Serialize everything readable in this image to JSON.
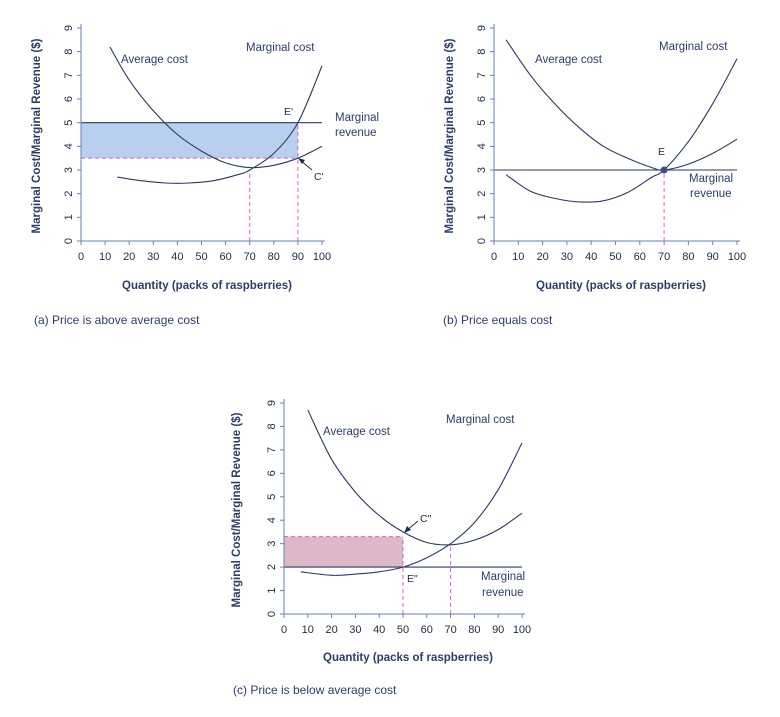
{
  "chart_data": [
    {
      "type": "line",
      "panel": "a",
      "caption": "(a) Price is above average cost",
      "xlabel": "Quantity (packs of raspberries)",
      "ylabel": "Marginal Cost/Marginal Revenue ($)",
      "xlim": [
        0,
        100
      ],
      "ylim": [
        0,
        9
      ],
      "xticks": [
        0,
        10,
        20,
        30,
        40,
        50,
        60,
        70,
        80,
        90,
        100
      ],
      "yticks": [
        0,
        1,
        2,
        3,
        4,
        5,
        6,
        7,
        8,
        9
      ],
      "series": [
        {
          "name": "Average cost",
          "curve": "ac",
          "label": "Average cost",
          "x": [
            12,
            20,
            30,
            40,
            50,
            60,
            70,
            80,
            90,
            100
          ],
          "y": [
            8.2,
            6.8,
            5.5,
            4.5,
            3.8,
            3.3,
            3.1,
            3.2,
            3.5,
            4.0
          ]
        },
        {
          "name": "Marginal cost",
          "curve": "mc",
          "label": "Marginal cost",
          "x": [
            15,
            25,
            35,
            45,
            55,
            65,
            70,
            80,
            90,
            100
          ],
          "y": [
            2.7,
            2.55,
            2.45,
            2.45,
            2.55,
            2.8,
            3.0,
            3.7,
            5.0,
            7.4
          ]
        },
        {
          "name": "Marginal revenue",
          "curve": "mr",
          "label": "Marginal revenue",
          "x": [
            0,
            100
          ],
          "y": [
            5,
            5
          ]
        }
      ],
      "markers": [
        {
          "label": "E'",
          "x": 90,
          "y": 5
        },
        {
          "label": "C'",
          "x": 90,
          "y": 3.5
        }
      ],
      "guides": [
        {
          "x": 70,
          "y_from": 0,
          "y_to": 3.0
        },
        {
          "x": 90,
          "y_from": 0,
          "y_to": 5.0
        },
        {
          "x_from": 0,
          "x_to": 90,
          "y": 3.5
        }
      ],
      "shaded": {
        "x": [
          0,
          90
        ],
        "y": [
          3.5,
          5
        ],
        "color": "#b8d0ee"
      },
      "colors": {
        "curves": "#2a3a66",
        "guides": "#d266c0",
        "axes": "#6a7fb3"
      }
    },
    {
      "type": "line",
      "panel": "b",
      "caption": "(b) Price equals cost",
      "xlabel": "Quantity (packs of raspberries)",
      "ylabel": "Marginal Cost/Marginal Revenue ($)",
      "xlim": [
        0,
        100
      ],
      "ylim": [
        0,
        9
      ],
      "xticks": [
        0,
        10,
        20,
        30,
        40,
        50,
        60,
        70,
        80,
        90,
        100
      ],
      "yticks": [
        0,
        1,
        2,
        3,
        4,
        5,
        6,
        7,
        8,
        9
      ],
      "series": [
        {
          "name": "Average cost",
          "curve": "ac",
          "label": "Average cost",
          "x": [
            5,
            15,
            25,
            35,
            45,
            55,
            65,
            70,
            80,
            90,
            100
          ],
          "y": [
            8.5,
            7.0,
            5.8,
            4.8,
            4.0,
            3.5,
            3.1,
            3.0,
            3.25,
            3.7,
            4.3
          ]
        },
        {
          "name": "Marginal cost",
          "curve": "mc",
          "label": "Marginal cost",
          "x": [
            5,
            15,
            25,
            35,
            45,
            55,
            65,
            70,
            80,
            90,
            100
          ],
          "y": [
            2.8,
            2.1,
            1.8,
            1.65,
            1.7,
            2.05,
            2.7,
            3.0,
            4.2,
            5.8,
            7.7
          ]
        },
        {
          "name": "Marginal revenue",
          "curve": "mr",
          "label": "Marginal revenue",
          "x": [
            0,
            100
          ],
          "y": [
            3,
            3
          ]
        }
      ],
      "markers": [
        {
          "label": "E",
          "x": 70,
          "y": 3,
          "dot": true
        }
      ],
      "guides": [
        {
          "x": 70,
          "y_from": 0,
          "y_to": 3.0
        }
      ],
      "colors": {
        "curves": "#2a3a66",
        "guides": "#d266c0",
        "axes": "#6a7fb3",
        "dot": "#3c4f82"
      }
    },
    {
      "type": "line",
      "panel": "c",
      "caption": "(c) Price is below average cost",
      "xlabel": "Quantity (packs of raspberries)",
      "ylabel": "Marginal Cost/Marginal Revenue ($)",
      "xlim": [
        0,
        100
      ],
      "ylim": [
        0,
        9
      ],
      "xticks": [
        0,
        10,
        20,
        30,
        40,
        50,
        60,
        70,
        80,
        90,
        100
      ],
      "yticks": [
        0,
        1,
        2,
        3,
        4,
        5,
        6,
        7,
        8,
        9
      ],
      "series": [
        {
          "name": "Average cost",
          "curve": "ac",
          "label": "Average cost",
          "x": [
            10,
            20,
            30,
            40,
            50,
            60,
            70,
            80,
            90,
            100
          ],
          "y": [
            8.7,
            6.6,
            5.2,
            4.2,
            3.5,
            3.05,
            2.95,
            3.15,
            3.6,
            4.3
          ]
        },
        {
          "name": "Marginal cost",
          "curve": "mc",
          "label": "Marginal cost",
          "x": [
            7,
            20,
            30,
            40,
            50,
            60,
            70,
            80,
            90,
            100
          ],
          "y": [
            1.8,
            1.65,
            1.7,
            1.8,
            2.0,
            2.4,
            3.0,
            3.9,
            5.3,
            7.3
          ]
        },
        {
          "name": "Marginal revenue",
          "curve": "mr",
          "label": "Marginal revenue",
          "x": [
            0,
            100
          ],
          "y": [
            2,
            2
          ]
        }
      ],
      "markers": [
        {
          "label": "C\"",
          "x": 50,
          "y": 3.3
        },
        {
          "label": "E\"",
          "x": 50,
          "y": 2
        }
      ],
      "guides": [
        {
          "x": 50,
          "y_from": 0,
          "y_to": 3.3
        },
        {
          "x": 70,
          "y_from": 0,
          "y_to": 3.0
        },
        {
          "x_from": 0,
          "x_to": 50,
          "y": 3.3
        }
      ],
      "shaded": {
        "x": [
          0,
          50
        ],
        "y": [
          2,
          3.3
        ],
        "color": "#dcb8c8"
      },
      "colors": {
        "curves": "#2a3a66",
        "guides": "#d266c0",
        "axes": "#6a7fb3"
      }
    }
  ]
}
